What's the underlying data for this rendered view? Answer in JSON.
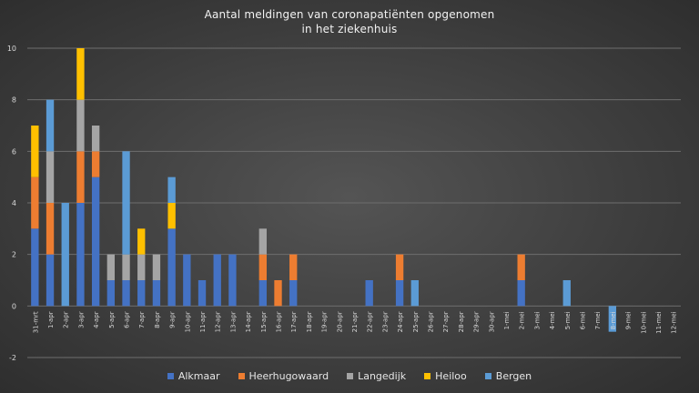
{
  "chart_data": {
    "type": "bar",
    "stacked": true,
    "title_line1": "Aantal meldingen van coronapatiënten opgenomen",
    "title_line2": "in het ziekenhuis",
    "ylim": [
      -2,
      10
    ],
    "yticks": [
      -2,
      0,
      2,
      4,
      6,
      8,
      10
    ],
    "grid": true,
    "legend_position": "bottom",
    "categories": [
      "31-mrt",
      "1-apr",
      "2-apr",
      "3-apr",
      "4-apr",
      "5-apr",
      "6-apr",
      "7-apr",
      "8-apr",
      "9-apr",
      "10-apr",
      "11-apr",
      "12-apr",
      "13-apr",
      "14-apr",
      "15-apr",
      "16-apr",
      "17-apr",
      "18-apr",
      "19-apr",
      "20-apr",
      "21-apr",
      "22-apr",
      "23-apr",
      "24-apr",
      "25-apr",
      "26-apr",
      "27-apr",
      "28-apr",
      "29-apr",
      "30-apr",
      "1-mei",
      "2-mei",
      "3-mei",
      "4-mei",
      "5-mei",
      "6-mei",
      "7-mei",
      "8-mei",
      "9-mei",
      "10-mei",
      "11-mei",
      "12-mei"
    ],
    "series": [
      {
        "name": "Alkmaar",
        "color": "#4472c4",
        "values": [
          3,
          2,
          0,
          4,
          5,
          1,
          1,
          1,
          1,
          3,
          2,
          1,
          2,
          2,
          0,
          1,
          0,
          1,
          0,
          0,
          0,
          0,
          1,
          0,
          1,
          0,
          0,
          0,
          0,
          0,
          0,
          0,
          1,
          0,
          0,
          0,
          0,
          0,
          0,
          0,
          0,
          0,
          0
        ]
      },
      {
        "name": "Heerhugowaard",
        "color": "#ed7d31",
        "values": [
          2,
          2,
          0,
          2,
          1,
          0,
          0,
          0,
          0,
          0,
          0,
          0,
          0,
          0,
          0,
          1,
          1,
          1,
          0,
          0,
          0,
          0,
          0,
          0,
          1,
          0,
          0,
          0,
          0,
          0,
          0,
          0,
          1,
          0,
          0,
          0,
          0,
          0,
          0,
          0,
          0,
          0,
          0
        ]
      },
      {
        "name": "Langedijk",
        "color": "#a5a5a5",
        "values": [
          0,
          2,
          0,
          2,
          1,
          1,
          1,
          1,
          1,
          0,
          0,
          0,
          0,
          0,
          0,
          1,
          0,
          0,
          0,
          0,
          0,
          0,
          0,
          0,
          0,
          0,
          0,
          0,
          0,
          0,
          0,
          0,
          0,
          0,
          0,
          0,
          0,
          0,
          0,
          0,
          0,
          0,
          0
        ]
      },
      {
        "name": "Heiloo",
        "color": "#ffc000",
        "values": [
          2,
          0,
          0,
          2,
          0,
          0,
          0,
          1,
          0,
          1,
          0,
          0,
          0,
          0,
          0,
          0,
          0,
          0,
          0,
          0,
          0,
          0,
          0,
          0,
          0,
          0,
          0,
          0,
          0,
          0,
          0,
          0,
          0,
          0,
          0,
          0,
          0,
          0,
          0,
          0,
          0,
          0,
          0
        ]
      },
      {
        "name": "Bergen",
        "color": "#5b9bd5",
        "values": [
          0,
          2,
          4,
          0,
          0,
          0,
          4,
          0,
          0,
          1,
          0,
          0,
          0,
          0,
          0,
          0,
          0,
          0,
          0,
          0,
          0,
          0,
          0,
          0,
          0,
          1,
          0,
          0,
          0,
          0,
          0,
          0,
          0,
          0,
          0,
          1,
          0,
          0,
          -1,
          0,
          0,
          0,
          0
        ]
      }
    ]
  }
}
